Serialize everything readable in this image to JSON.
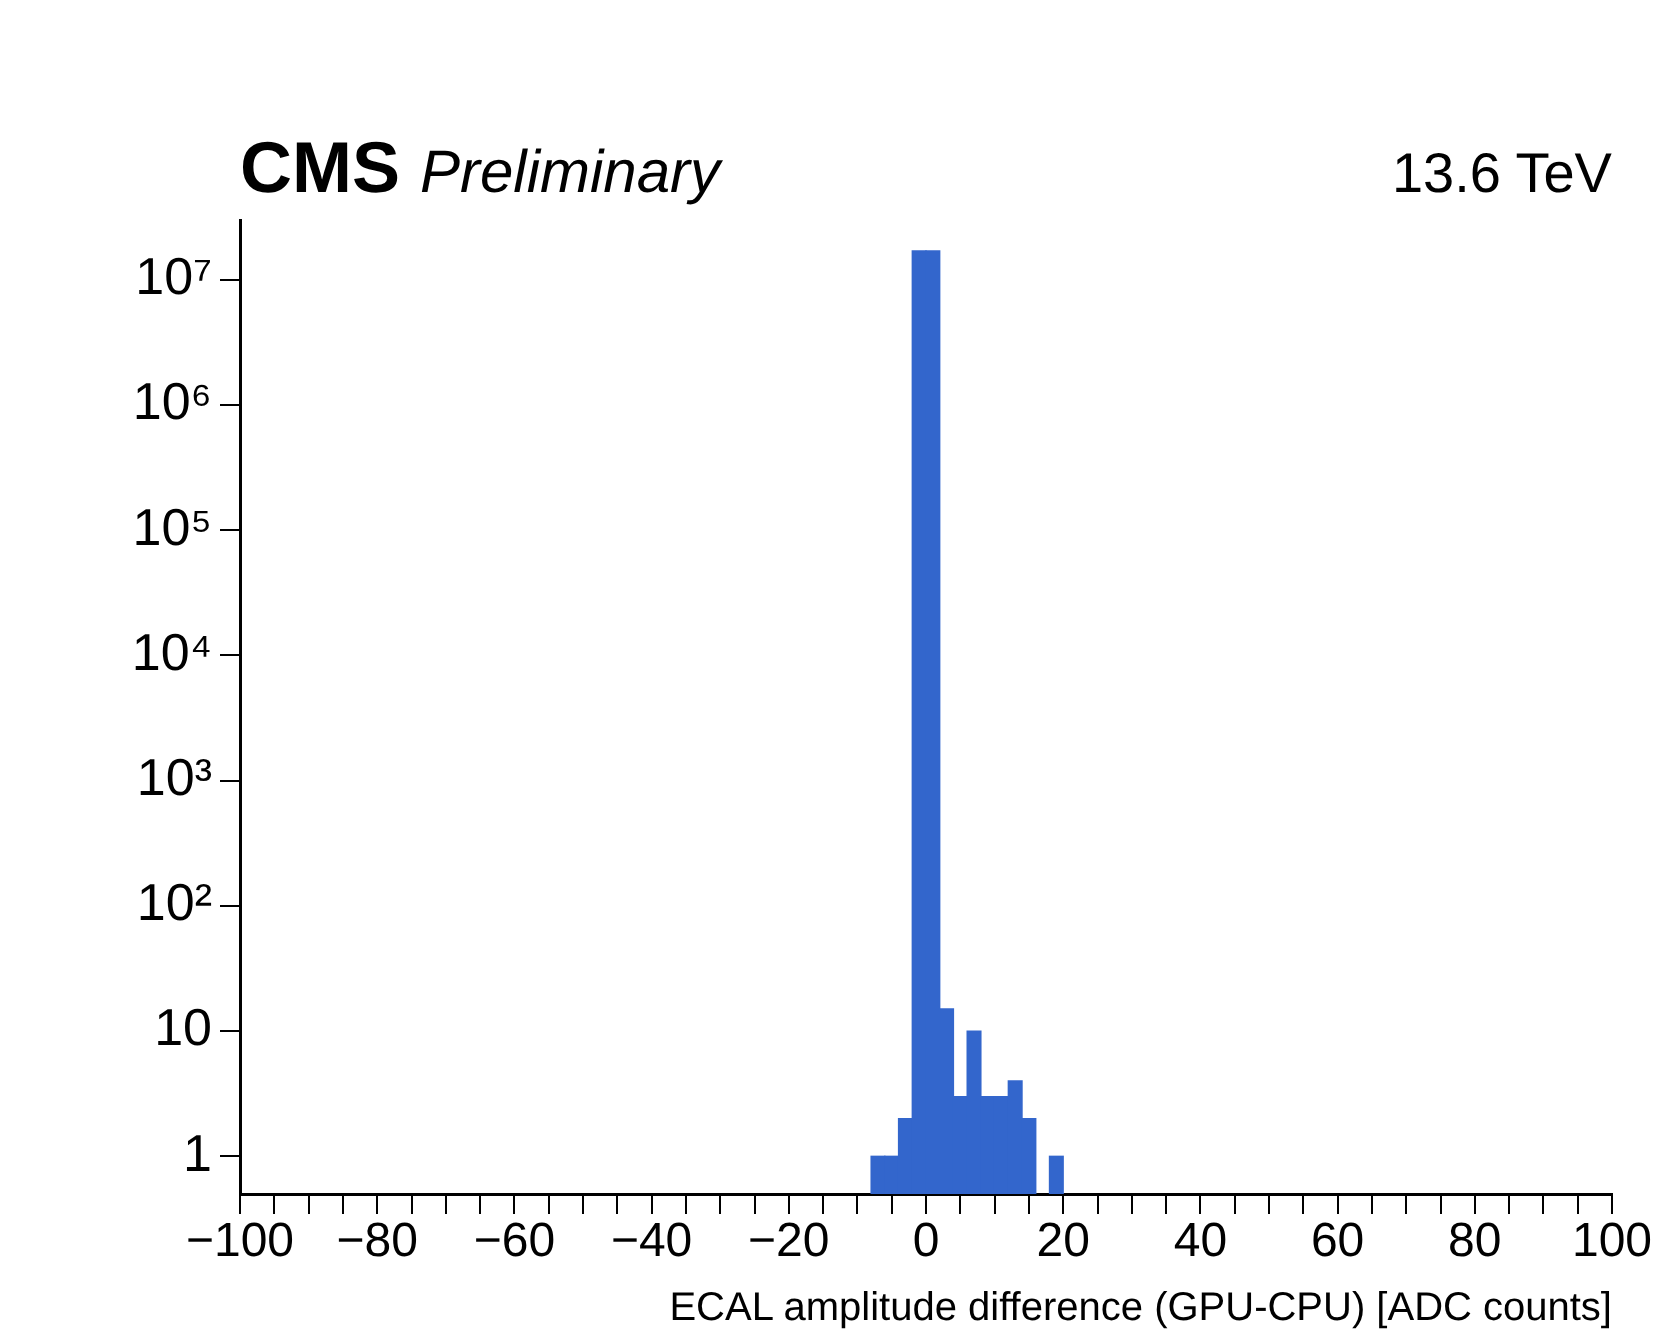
{
  "chart_data": {
    "type": "histogram",
    "title": "CMS",
    "subtitle": "Preliminary",
    "annotations": [
      "13.6 TeV"
    ],
    "xlabel": "ECAL amplitude difference (GPU-CPU) [ADC counts]",
    "bins": [
      -8,
      -6,
      -4,
      -2,
      0,
      2,
      4,
      6,
      8,
      10,
      12,
      14,
      16,
      18,
      20
    ],
    "values": [
      1,
      1,
      2,
      17000000,
      17000000,
      15,
      3,
      10,
      3,
      3,
      4,
      2,
      null,
      1
    ],
    "color": "#3366cc",
    "log": "y",
    "grid": false,
    "legend": false,
    "xlim": [
      -100,
      100
    ],
    "xticks": [
      -100,
      {
        "value": -95,
        "label": null
      },
      {
        "value": -90,
        "label": null
      },
      {
        "value": -85,
        "label": null
      },
      -80,
      {
        "value": -75,
        "label": null
      },
      {
        "value": -70,
        "label": null
      },
      {
        "value": -65,
        "label": null
      },
      -60,
      {
        "value": -55,
        "label": null
      },
      {
        "value": -50,
        "label": null
      },
      {
        "value": -45,
        "label": null
      },
      -40,
      {
        "value": -35,
        "label": null
      },
      {
        "value": -30,
        "label": null
      },
      {
        "value": -25,
        "label": null
      },
      -20,
      {
        "value": -15,
        "label": null
      },
      {
        "value": -10,
        "label": null
      },
      {
        "value": -5,
        "label": null
      },
      0,
      {
        "value": 5,
        "label": null
      },
      {
        "value": 10,
        "label": null
      },
      {
        "value": 15,
        "label": null
      },
      20,
      {
        "value": 25,
        "label": null
      },
      {
        "value": 30,
        "label": null
      },
      {
        "value": 35,
        "label": null
      },
      40,
      {
        "value": 45,
        "label": null
      },
      {
        "value": 50,
        "label": null
      },
      {
        "value": 55,
        "label": null
      },
      60,
      {
        "value": 65,
        "label": null
      },
      {
        "value": 70,
        "label": null
      },
      {
        "value": 75,
        "label": null
      },
      80,
      {
        "value": 85,
        "label": null
      },
      {
        "value": 90,
        "label": null
      },
      {
        "value": 95,
        "label": null
      },
      100
    ],
    "ylim": [
      0.5,
      30000000
    ],
    "yticks": [
      1,
      10,
      {
        "value": 100,
        "label": "10²"
      },
      {
        "value": 1000,
        "label": "10³"
      },
      {
        "value": 10000,
        "label": "10⁴"
      },
      {
        "value": 100000,
        "label": "10⁵"
      },
      {
        "value": 1000000,
        "label": "10⁶"
      },
      {
        "value": 10000000,
        "label": "10⁷"
      }
    ]
  }
}
